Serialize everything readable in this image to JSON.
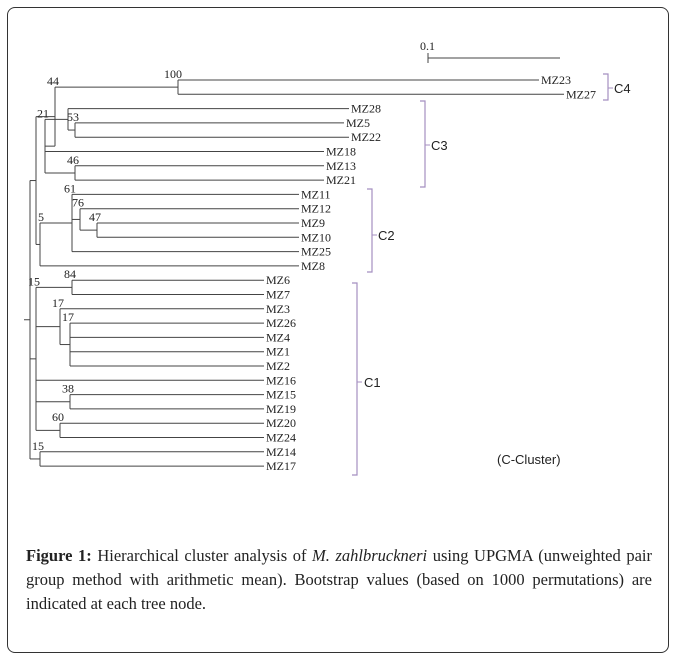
{
  "figure": {
    "scale_label": "0.1",
    "leaves": [
      "MZ23",
      "MZ27",
      "MZ28",
      "MZ5",
      "MZ22",
      "MZ18",
      "MZ13",
      "MZ21",
      "MZ11",
      "MZ12",
      "MZ9",
      "MZ10",
      "MZ25",
      "MZ8",
      "MZ6",
      "MZ7",
      "MZ3",
      "MZ26",
      "MZ4",
      "MZ1",
      "MZ2",
      "MZ16",
      "MZ15",
      "MZ19",
      "MZ20",
      "MZ24",
      "MZ14",
      "MZ17"
    ],
    "bootstrap": [
      100,
      44,
      53,
      21,
      46,
      61,
      76,
      47,
      5,
      84,
      17,
      17,
      15,
      38,
      60,
      15
    ],
    "clusters": [
      "C4",
      "C3",
      "C2",
      "C1"
    ],
    "note": "(C-Cluster)"
  },
  "caption": {
    "label": "Figure 1:",
    "text_before": " Hierarchical cluster analysis of ",
    "species": "M. zahlbruckneri",
    "text_after": " using UPGMA (unweighted pair group method with arithmetic mean). Bootstrap values (based on 1000 permutations) are indicated at each tree node."
  }
}
